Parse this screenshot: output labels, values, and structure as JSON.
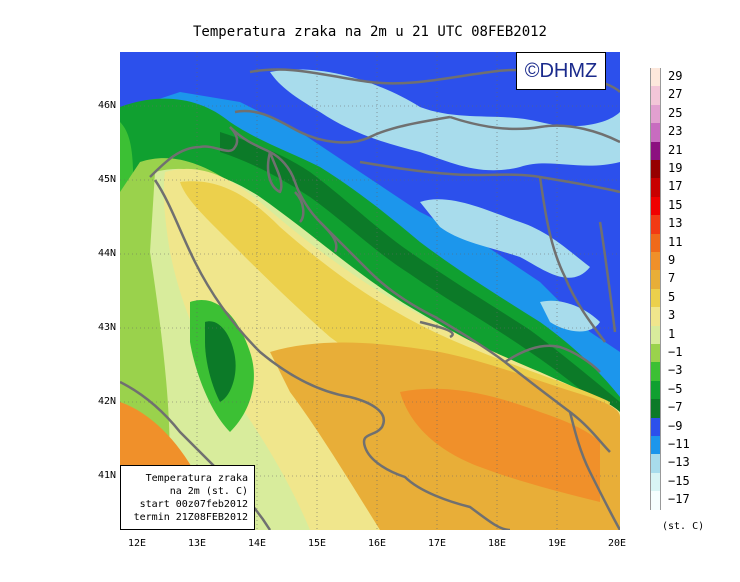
{
  "title": "Temperatura zraka na 2m u 21 UTC 08FEB2012",
  "logo": "©DHMZ",
  "info": {
    "line1": "Temperatura zraka",
    "line2": "na 2m (st. C)",
    "line3": "start 00z07feb2012",
    "line4": "termin 21Z08FEB2012"
  },
  "map": {
    "lon_range": [
      11.7,
      20.0
    ],
    "lat_range": [
      40.3,
      46.8
    ],
    "lat_labels": [
      "46N",
      "45N",
      "44N",
      "43N",
      "42N",
      "41N"
    ],
    "lon_labels": [
      "12E",
      "13E",
      "14E",
      "15E",
      "16E",
      "17E",
      "18E",
      "19E",
      "20E"
    ]
  },
  "legend": {
    "unit": "(st. C)",
    "items": [
      {
        "label": "29",
        "color": "#fde8dc"
      },
      {
        "label": "27",
        "color": "#f3c6d8"
      },
      {
        "label": "25",
        "color": "#e2a0d0"
      },
      {
        "label": "23",
        "color": "#c86cc0"
      },
      {
        "label": "21",
        "color": "#8c1080"
      },
      {
        "label": "19",
        "color": "#960000"
      },
      {
        "label": "17",
        "color": "#c80000"
      },
      {
        "label": "15",
        "color": "#f00000"
      },
      {
        "label": "13",
        "color": "#f23a14"
      },
      {
        "label": "11",
        "color": "#f06a1a"
      },
      {
        "label": "9",
        "color": "#f0902a"
      },
      {
        "label": "7",
        "color": "#e8ae38"
      },
      {
        "label": "5",
        "color": "#ecd04c"
      },
      {
        "label": "3",
        "color": "#f0e68c"
      },
      {
        "label": "1",
        "color": "#d8ec9c"
      },
      {
        "label": "−1",
        "color": "#9ad24c"
      },
      {
        "label": "−3",
        "color": "#3cc034"
      },
      {
        "label": "−5",
        "color": "#10a030"
      },
      {
        "label": "−7",
        "color": "#0c7a28"
      },
      {
        "label": "−9",
        "color": "#2c50ec"
      },
      {
        "label": "−11",
        "color": "#1c96ec"
      },
      {
        "label": "−13",
        "color": "#a8dcec"
      },
      {
        "label": "−15",
        "color": "#d8f4f4"
      },
      {
        "label": "−17",
        "color": "#f6fefe"
      }
    ]
  }
}
